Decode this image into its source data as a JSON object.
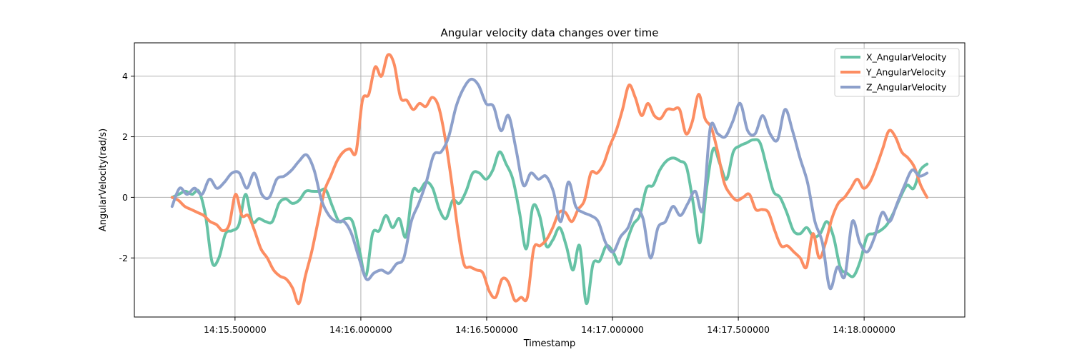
{
  "chart_data": {
    "type": "line",
    "title": "Angular velocity data changes over time",
    "xlabel": "Timestamp",
    "ylabel": "AngularVelocity(rad/s)",
    "x_range": [
      "14:15.250000",
      "14:18.250000"
    ],
    "xlim": [
      "14:15.100000",
      "14:18.400000"
    ],
    "ylim": [
      -3.95,
      5.1
    ],
    "x_ticks": [
      "14:15.500000",
      "14:16.000000",
      "14:16.500000",
      "14:17.000000",
      "14:17.500000",
      "14:18.000000"
    ],
    "y_ticks": [
      "-2",
      "0",
      "2",
      "4"
    ],
    "grid": true,
    "legend": "top-right",
    "series": [
      {
        "name": "X_AngularVelocity",
        "color": "#66c2a5",
        "values": [
          0,
          0.1,
          0.2,
          0.1,
          0.2,
          -0.6,
          -2.15,
          -2.0,
          -1.2,
          -1.1,
          -0.9,
          0.1,
          -0.8,
          -0.7,
          -0.8,
          -0.8,
          -0.2,
          -0.05,
          -0.2,
          -0.1,
          0.2,
          0.2,
          0.2,
          0.25,
          -0.3,
          -0.8,
          -0.7,
          -0.8,
          -1.7,
          -2.6,
          -1.2,
          -1.1,
          -0.6,
          -1.0,
          -0.7,
          -1.3,
          0.2,
          0.2,
          0.5,
          0.3,
          -0.4,
          -0.7,
          -0.1,
          -0.2,
          0.2,
          0.8,
          0.8,
          0.6,
          0.9,
          1.5,
          1.1,
          0.6,
          -0.5,
          -1.7,
          -0.3,
          -0.6,
          -1.6,
          -1.4,
          -1.0,
          -1.6,
          -2.4,
          -1.6,
          -3.5,
          -2.2,
          -2.1,
          -1.6,
          -1.8,
          -2.2,
          -1.5,
          -0.9,
          -0.6,
          0.3,
          0.4,
          0.9,
          1.2,
          1.3,
          1.2,
          1.0,
          -0.2,
          -1.5,
          0.3,
          1.6,
          1.1,
          0.6,
          1.5,
          1.7,
          1.8,
          1.9,
          1.8,
          1.0,
          0.2,
          0.0,
          -0.5,
          -1.1,
          -1.2,
          -1.0,
          -1.3,
          -1.2,
          -0.8,
          -1.3,
          -2.3,
          -2.5,
          -2.6,
          -2.1,
          -1.3,
          -1.2,
          -1.1,
          -0.9,
          -0.5,
          0.0,
          0.4,
          0.3,
          0.9,
          1.1
        ]
      },
      {
        "name": "Y_AngularVelocity",
        "color": "#fc8d62",
        "values": [
          0,
          -0.1,
          -0.3,
          -0.4,
          -0.5,
          -0.6,
          -0.8,
          -0.9,
          -1.1,
          -0.9,
          0.1,
          -0.6,
          -0.6,
          -1.1,
          -1.7,
          -2.0,
          -2.4,
          -2.6,
          -2.7,
          -3.0,
          -3.5,
          -2.6,
          -1.8,
          -0.8,
          0.2,
          0.7,
          1.2,
          1.5,
          1.6,
          1.5,
          3.2,
          3.4,
          4.3,
          4.0,
          4.7,
          4.4,
          3.3,
          3.2,
          2.9,
          3.1,
          3.0,
          3.3,
          3.0,
          2.0,
          0.6,
          -1.0,
          -2.2,
          -2.3,
          -2.4,
          -2.5,
          -3.1,
          -3.3,
          -2.7,
          -2.8,
          -3.4,
          -3.3,
          -3.3,
          -1.7,
          -1.6,
          -1.4,
          -1.0,
          -0.5,
          -0.5,
          -0.8,
          -0.4,
          -0.1,
          0.8,
          0.8,
          1.1,
          1.7,
          2.2,
          2.9,
          3.7,
          3.3,
          2.7,
          3.1,
          2.7,
          2.6,
          2.9,
          2.9,
          2.9,
          2.1,
          2.5,
          3.4,
          2.6,
          2.3,
          1.5,
          0.5,
          0.1,
          -0.1,
          0.0,
          0.1,
          -0.4,
          -0.4,
          -0.5,
          -1.1,
          -1.6,
          -1.6,
          -1.8,
          -2.0,
          -2.3,
          -1.2,
          -2.0,
          -1.5,
          -0.7,
          -0.2,
          0.0,
          0.3,
          0.6,
          0.3,
          0.5,
          1.0,
          1.6,
          2.2,
          2.0,
          1.5,
          1.3,
          1.0,
          0.4,
          0.0
        ]
      },
      {
        "name": "Z_AngularVelocity",
        "color": "#8da0cb",
        "values": [
          -0.3,
          0.3,
          0.1,
          0.3,
          0.1,
          0.6,
          0.3,
          0.5,
          0.8,
          0.8,
          0.3,
          0.8,
          0.1,
          0.0,
          0.6,
          0.7,
          0.9,
          1.2,
          1.4,
          0.9,
          -0.1,
          -0.6,
          -0.8,
          -0.8,
          -1.2,
          -2.0,
          -2.7,
          -2.5,
          -2.4,
          -2.5,
          -2.2,
          -2.0,
          -0.8,
          -0.2,
          0.5,
          1.4,
          1.5,
          2.0,
          3.0,
          3.6,
          3.9,
          3.7,
          3.1,
          3.0,
          2.2,
          2.7,
          1.6,
          0.4,
          0.8,
          0.6,
          0.7,
          0.2,
          -0.8,
          0.5,
          -0.3,
          -0.5,
          -0.6,
          -0.8,
          -1.5,
          -1.8,
          -1.3,
          -1.0,
          -0.4,
          -0.7,
          -2.0,
          -1.0,
          -0.8,
          -0.3,
          -0.6,
          -0.2,
          0.2,
          -0.4,
          2.3,
          2.1,
          2.0,
          2.5,
          3.1,
          2.2,
          2.1,
          2.7,
          2.1,
          1.9,
          2.9,
          2.2,
          1.3,
          0.5,
          -0.8,
          -1.5,
          -3.0,
          -2.3,
          -2.6,
          -0.8,
          -1.5,
          -1.8,
          -1.3,
          -0.5,
          -0.8,
          -0.2,
          0.4,
          0.9,
          0.7,
          0.8
        ]
      }
    ]
  }
}
